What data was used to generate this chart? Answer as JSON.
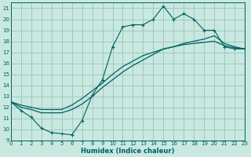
{
  "xlabel": "Humidex (Indice chaleur)",
  "xlim": [
    0,
    23
  ],
  "ylim": [
    9,
    21.5
  ],
  "yticks": [
    9,
    10,
    11,
    12,
    13,
    14,
    15,
    16,
    17,
    18,
    19,
    20,
    21
  ],
  "xticks": [
    0,
    1,
    2,
    3,
    4,
    5,
    6,
    7,
    8,
    9,
    10,
    11,
    12,
    13,
    14,
    15,
    16,
    17,
    18,
    19,
    20,
    21,
    22,
    23
  ],
  "background_color": "#c8e8e0",
  "grid_color": "#a0c8c0",
  "line_color": "#006060",
  "line1_x": [
    0,
    1,
    2,
    3,
    4,
    5,
    6,
    7,
    8,
    9,
    10,
    11,
    12,
    13,
    14,
    15,
    16,
    17,
    18,
    19,
    20,
    21,
    22,
    23
  ],
  "line1_y": [
    12.5,
    11.7,
    11.1,
    10.1,
    9.7,
    9.6,
    9.5,
    10.8,
    13.1,
    14.5,
    17.5,
    19.3,
    19.5,
    19.5,
    20.0,
    21.2,
    20.0,
    20.5,
    20.0,
    19.0,
    19.0,
    17.5,
    17.3,
    17.3
  ],
  "line2_x": [
    0,
    1,
    2,
    3,
    4,
    5,
    6,
    7,
    8,
    9,
    10,
    11,
    12,
    13,
    14,
    15,
    16,
    17,
    18,
    19,
    20,
    21,
    22,
    23
  ],
  "line2_y": [
    12.5,
    12.0,
    11.8,
    11.5,
    11.5,
    11.5,
    11.8,
    12.3,
    13.0,
    13.8,
    14.5,
    15.2,
    15.8,
    16.3,
    16.8,
    17.3,
    17.5,
    17.8,
    18.0,
    18.2,
    18.5,
    17.8,
    17.5,
    17.3
  ],
  "line3_x": [
    0,
    1,
    2,
    3,
    4,
    5,
    6,
    7,
    8,
    9,
    10,
    11,
    12,
    13,
    14,
    15,
    16,
    17,
    18,
    19,
    20,
    21,
    22,
    23
  ],
  "line3_y": [
    12.5,
    12.2,
    12.0,
    11.8,
    11.8,
    11.8,
    12.2,
    12.8,
    13.5,
    14.2,
    15.0,
    15.7,
    16.2,
    16.7,
    17.0,
    17.3,
    17.5,
    17.7,
    17.8,
    17.9,
    18.0,
    17.6,
    17.4,
    17.3
  ]
}
